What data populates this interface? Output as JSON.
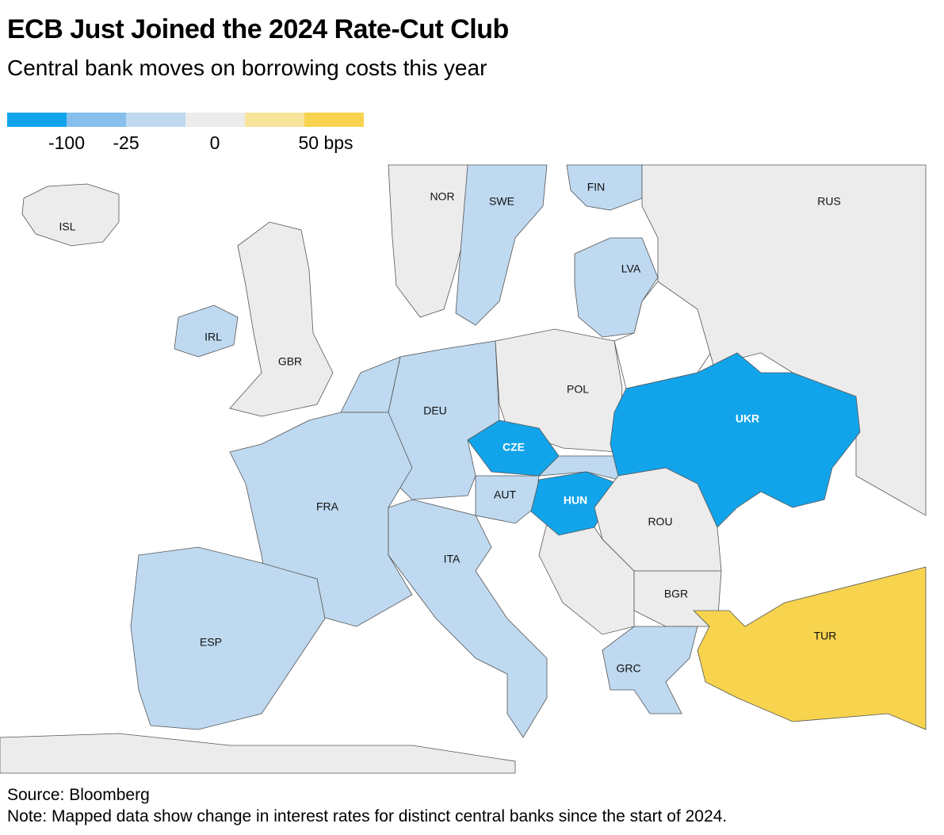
{
  "header": {
    "title": "ECB Just Joined the 2024 Rate-Cut Club",
    "subtitle": "Central bank moves on borrowing costs this year"
  },
  "legend": {
    "colors": [
      "#12a4ea",
      "#86bfee",
      "#bed9f0",
      "#ececec",
      "#f7e39a",
      "#f7d34e"
    ],
    "labels": [
      "-100",
      "-25",
      "0",
      "50 bps"
    ]
  },
  "map": {
    "countries": [
      {
        "label": "ISL",
        "fill": "#ececec"
      },
      {
        "label": "NOR",
        "fill": "#ececec"
      },
      {
        "label": "SWE",
        "fill": "#bed9f0"
      },
      {
        "label": "FIN",
        "fill": "#bed9f0"
      },
      {
        "label": "RUS",
        "fill": "#ececec"
      },
      {
        "label": "LVA",
        "fill": "#bed9f0"
      },
      {
        "label": "GBR",
        "fill": "#ececec"
      },
      {
        "label": "IRL",
        "fill": "#bed9f0"
      },
      {
        "label": "DEU",
        "fill": "#bed9f0"
      },
      {
        "label": "POL",
        "fill": "#ececec"
      },
      {
        "label": "UKR",
        "fill": "#12a4ea"
      },
      {
        "label": "CZE",
        "fill": "#12a4ea"
      },
      {
        "label": "AUT",
        "fill": "#bed9f0"
      },
      {
        "label": "HUN",
        "fill": "#12a4ea"
      },
      {
        "label": "ROU",
        "fill": "#ececec"
      },
      {
        "label": "BGR",
        "fill": "#ececec"
      },
      {
        "label": "FRA",
        "fill": "#bed9f0"
      },
      {
        "label": "ESP",
        "fill": "#bed9f0"
      },
      {
        "label": "ITA",
        "fill": "#bed9f0"
      },
      {
        "label": "GRC",
        "fill": "#bed9f0"
      },
      {
        "label": "TUR",
        "fill": "#f7d34e"
      }
    ]
  },
  "footer": {
    "source": "Source: Bloomberg",
    "note": "Note: Mapped data show change in interest rates for distinct central banks since the start of 2024."
  }
}
